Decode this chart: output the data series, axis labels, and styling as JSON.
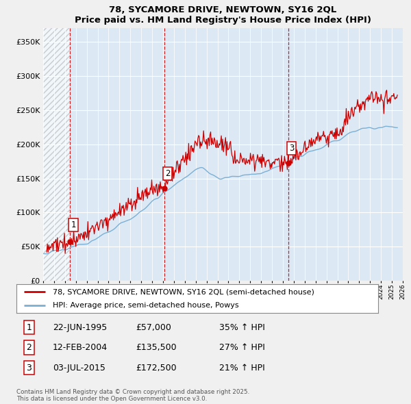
{
  "title": "78, SYCAMORE DRIVE, NEWTOWN, SY16 2QL",
  "subtitle": "Price paid vs. HM Land Registry's House Price Index (HPI)",
  "ylim": [
    0,
    370000
  ],
  "yticks": [
    0,
    50000,
    100000,
    150000,
    200000,
    250000,
    300000,
    350000
  ],
  "ytick_labels": [
    "£0",
    "£50K",
    "£100K",
    "£150K",
    "£200K",
    "£250K",
    "£300K",
    "£350K"
  ],
  "sale_dates": [
    1995.47,
    2004.11,
    2015.5
  ],
  "sale_prices": [
    57000,
    135500,
    172500
  ],
  "sale_labels": [
    "1",
    "2",
    "3"
  ],
  "hpi_color": "#7bafd4",
  "price_color": "#cc0000",
  "vline_color": "#cc0000",
  "background_color": "#f0f0f0",
  "plot_bg_color": "#dce9f5",
  "grid_color": "#ffffff",
  "legend_label_price": "78, SYCAMORE DRIVE, NEWTOWN, SY16 2QL (semi-detached house)",
  "legend_label_hpi": "HPI: Average price, semi-detached house, Powys",
  "table_data": [
    [
      "1",
      "22-JUN-1995",
      "£57,000",
      "35% ↑ HPI"
    ],
    [
      "2",
      "12-FEB-2004",
      "£135,500",
      "27% ↑ HPI"
    ],
    [
      "3",
      "03-JUL-2015",
      "£172,500",
      "21% ↑ HPI"
    ]
  ],
  "footnote": "Contains HM Land Registry data © Crown copyright and database right 2025.\nThis data is licensed under the Open Government Licence v3.0.",
  "xmin": 1993,
  "xmax": 2026
}
